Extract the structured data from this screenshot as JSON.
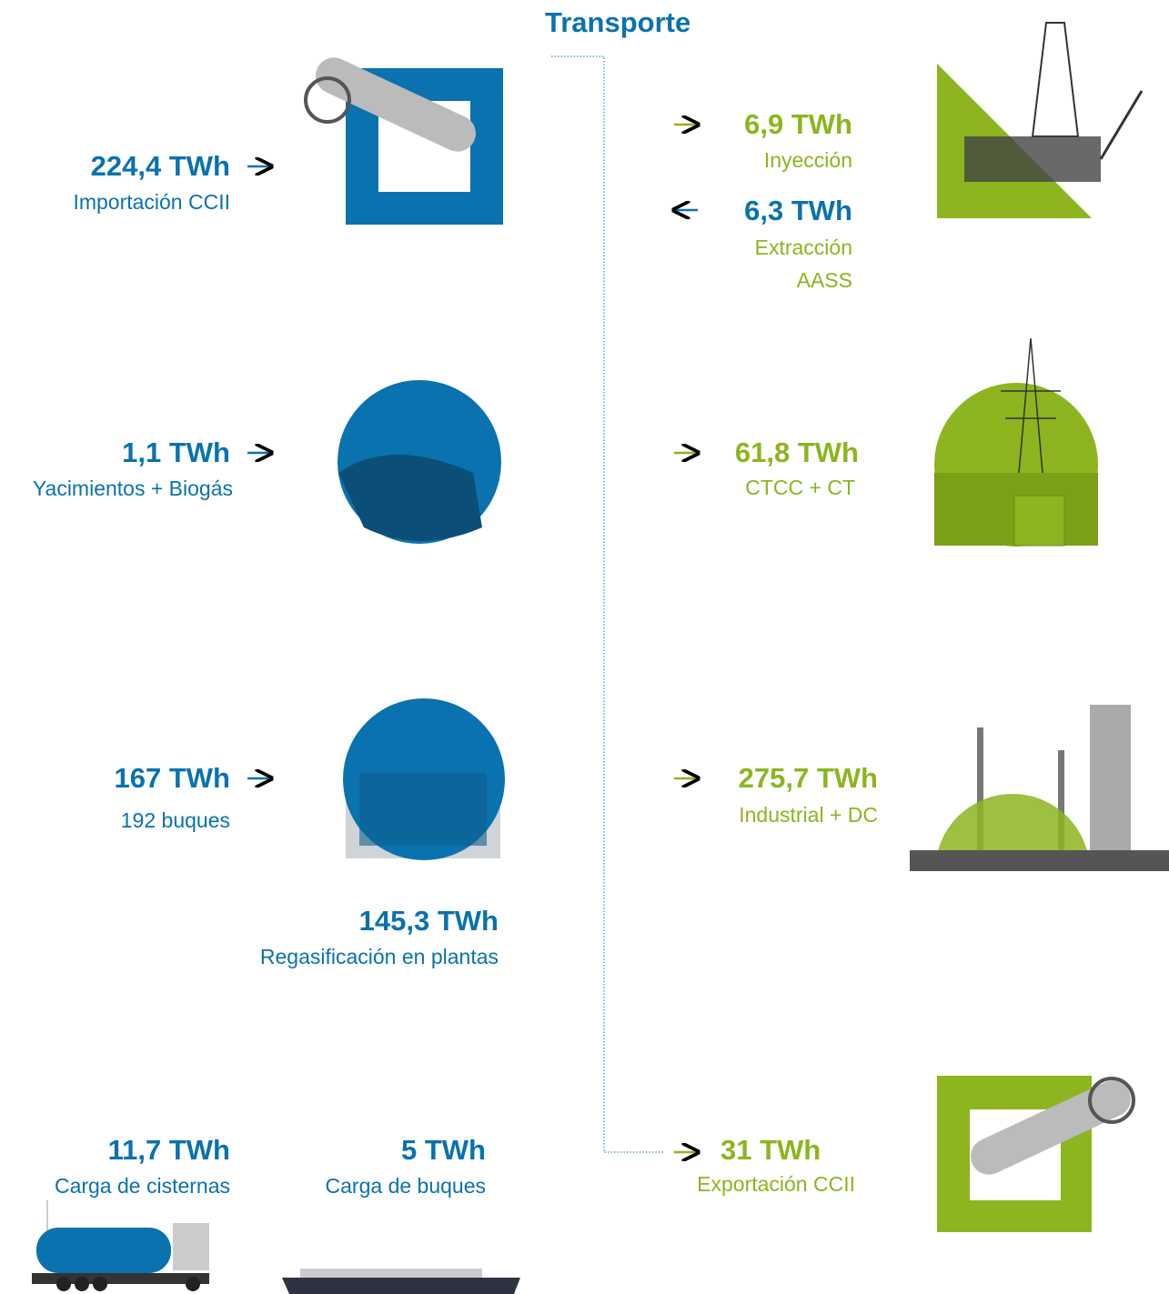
{
  "header": {
    "title": "Transporte"
  },
  "inputs": [
    {
      "value": "224,4 TWh",
      "label": "Importación CCII"
    },
    {
      "value": "1,1 TWh",
      "label": "Yacimientos + Biogás"
    },
    {
      "value": "167 TWh",
      "label": "192 buques"
    },
    {
      "value": "145,3 TWh",
      "label": "Regasificación en plantas"
    },
    {
      "value": "11,7 TWh",
      "label": "Carga de cisternas"
    },
    {
      "value": "5 TWh",
      "label": "Carga de buques"
    }
  ],
  "outputs": [
    {
      "value": "6,9 TWh",
      "label": "Inyección"
    },
    {
      "value": "6,3 TWh",
      "label": [
        "Extracción",
        "AASS"
      ]
    },
    {
      "value": "61,8 TWh",
      "label": "CTCC + CT"
    },
    {
      "value": "275,7 TWh",
      "label": "Industrial + DC"
    },
    {
      "value": "31 TWh",
      "label": "Exportación CCII"
    }
  ]
}
